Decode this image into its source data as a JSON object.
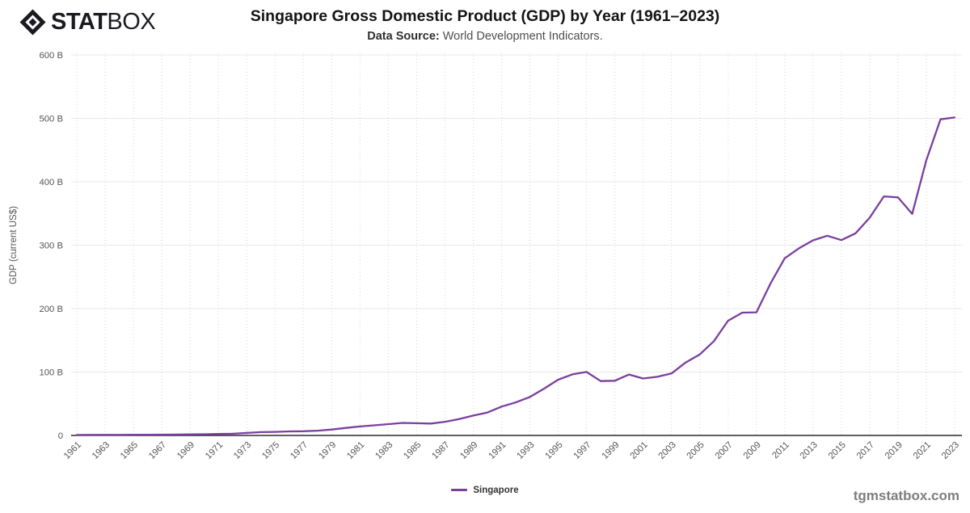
{
  "header": {
    "logo_bold": "STAT",
    "logo_light": "BOX",
    "title": "Singapore Gross Domestic Product (GDP) by Year (1961–2023)",
    "data_source_label": "Data Source:",
    "data_source_value": "World Development Indicators."
  },
  "legend": {
    "label": "Singapore"
  },
  "footer": {
    "watermark": "tgmstatbox.com"
  },
  "colors": {
    "line": "#7a3fa0",
    "h_grid": "#e8e8e8",
    "v_grid": "#d6d6d6",
    "axis": "#2b2b2b",
    "tick_text": "#555555",
    "logo": "#1a1a21"
  },
  "chart_data": {
    "type": "line",
    "title": "Singapore Gross Domestic Product (GDP) by Year (1961–2023)",
    "subtitle": "Data Source: World Development Indicators.",
    "xlabel": "",
    "ylabel": "GDP (current US$)",
    "ylim": [
      0,
      600
    ],
    "y_tick_step": 100,
    "y_tick_labels": [
      "0",
      "100 B",
      "200 B",
      "300 B",
      "400 B",
      "500 B",
      "600 B"
    ],
    "x_tick_step": 2,
    "grid": "horizontal solid, vertical dotted at ticks",
    "legend_position": "bottom-center",
    "units": "billions of current US$",
    "series": [
      {
        "name": "Singapore",
        "years": [
          1961,
          1962,
          1963,
          1964,
          1965,
          1966,
          1967,
          1968,
          1969,
          1970,
          1971,
          1972,
          1973,
          1974,
          1975,
          1976,
          1977,
          1978,
          1979,
          1980,
          1981,
          1982,
          1983,
          1984,
          1985,
          1986,
          1987,
          1988,
          1989,
          1990,
          1991,
          1992,
          1993,
          1994,
          1995,
          1996,
          1997,
          1998,
          1999,
          2000,
          2001,
          2002,
          2003,
          2004,
          2005,
          2006,
          2007,
          2008,
          2009,
          2010,
          2011,
          2012,
          2013,
          2014,
          2015,
          2016,
          2017,
          2018,
          2019,
          2020,
          2021,
          2022,
          2023
        ],
        "values_billion_usd": [
          0.76,
          0.83,
          0.92,
          0.88,
          0.97,
          1.1,
          1.24,
          1.43,
          1.66,
          1.92,
          2.26,
          2.72,
          3.99,
          5.22,
          5.63,
          6.33,
          6.62,
          7.5,
          9.3,
          11.9,
          14.18,
          15.94,
          17.87,
          19.71,
          19.19,
          18.76,
          21.59,
          25.76,
          31.37,
          36.14,
          45.47,
          52.13,
          60.65,
          73.78,
          87.89,
          96.3,
          100.16,
          85.71,
          86.28,
          96.07,
          89.79,
          92.54,
          97.65,
          115.03,
          127.81,
          148.63,
          180.94,
          193.62,
          194.15,
          239.81,
          279.35,
          295.09,
          307.58,
          314.85,
          308.0,
          318.76,
          343.26,
          376.89,
          375.47,
          349.49,
          434.1,
          498.52,
          501.43
        ]
      }
    ]
  }
}
